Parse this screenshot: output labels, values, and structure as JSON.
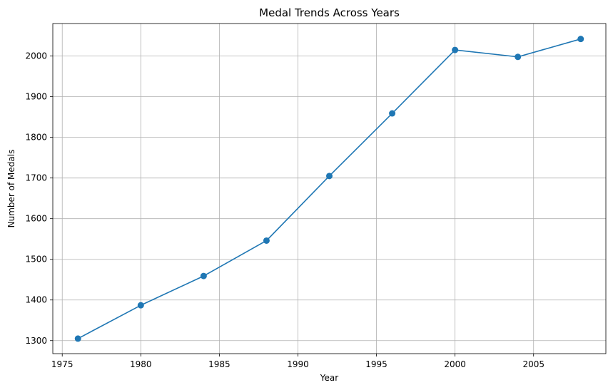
{
  "chart_data": {
    "type": "line",
    "title": "Medal Trends Across Years",
    "xlabel": "Year",
    "ylabel": "Number of Medals",
    "xlim": [
      1974.4,
      2009.6
    ],
    "ylim": [
      1268,
      2080
    ],
    "xticks": [
      1975,
      1980,
      1985,
      1990,
      1995,
      2000,
      2005
    ],
    "yticks": [
      1300,
      1400,
      1500,
      1600,
      1700,
      1800,
      1900,
      2000
    ],
    "grid": true,
    "marker": "circle",
    "colors": {
      "line": "#1f77b4"
    },
    "series": [
      {
        "x": [
          1976,
          1980,
          1984,
          1988,
          1992,
          1996,
          2000,
          2004,
          2008
        ],
        "y": [
          1305,
          1387,
          1459,
          1546,
          1705,
          1859,
          2015,
          1998,
          2042
        ]
      }
    ]
  }
}
